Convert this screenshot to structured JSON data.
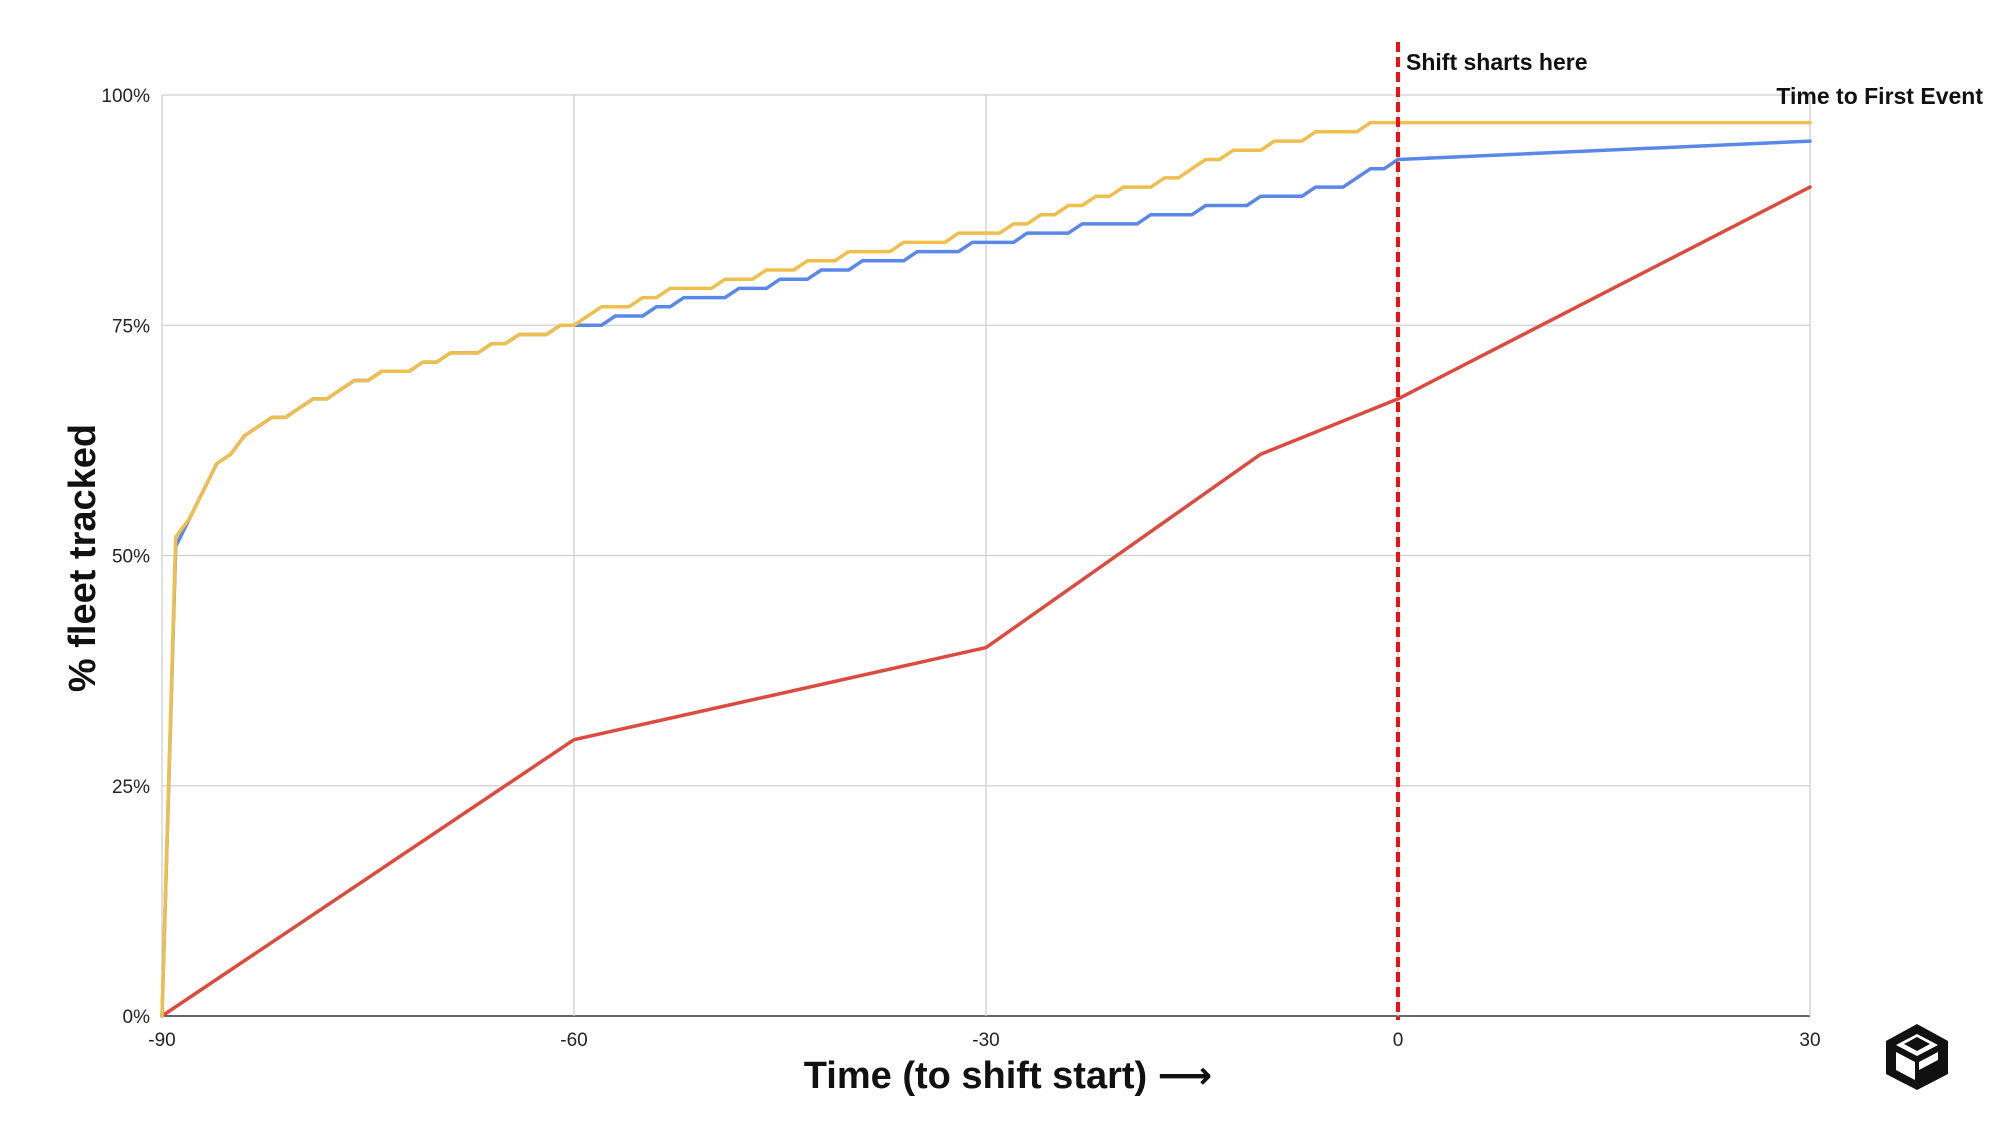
{
  "chart_data": {
    "type": "line",
    "xlabel": "Time (to shift start) ⟶",
    "ylabel": "% fleet tracked",
    "xlim": [
      -90,
      30
    ],
    "ylim": [
      0,
      1
    ],
    "x_ticks": [
      -90,
      -60,
      -30,
      0,
      30
    ],
    "x_tick_labels": [
      "-90",
      "-60",
      "-30",
      "0",
      "30"
    ],
    "y_ticks": [
      0,
      0.25,
      0.5,
      0.75,
      1
    ],
    "y_tick_labels": [
      "0%",
      "25%",
      "50%",
      "75%",
      "100%"
    ],
    "grid": true,
    "colors": {
      "red": "#db4c3f",
      "blue": "#5a88e8",
      "yellow": "#eebf4c",
      "marker": "#ee1111",
      "grid": "#d0d0d0"
    },
    "annotations": {
      "shift_line_x": 0,
      "shift_label": "Shift sharts here",
      "series_label": "Time to First Event"
    },
    "series": [
      {
        "color": "#db4c3f",
        "x": [
          -90,
          -60,
          -30,
          -10,
          0,
          30
        ],
        "y": [
          0,
          0.3,
          0.4,
          0.61,
          0.67,
          0.9
        ]
      },
      {
        "color": "#5a88e8",
        "x": [
          -90,
          -89,
          -88,
          -87,
          -86,
          -85,
          -84,
          -83,
          -82,
          -81,
          -80,
          -79,
          -78,
          -77,
          -76,
          -75,
          -74,
          -73,
          -72,
          -71,
          -70,
          -69,
          -68,
          -67,
          -66,
          -65,
          -64,
          -63,
          -62,
          -61,
          -60,
          -59,
          -58,
          -57,
          -56,
          -55,
          -54,
          -53,
          -52,
          -51,
          -50,
          -49,
          -48,
          -47,
          -46,
          -45,
          -44,
          -43,
          -42,
          -41,
          -40,
          -39,
          -38,
          -37,
          -36,
          -35,
          -34,
          -33,
          -32,
          -31,
          -30,
          -29,
          -28,
          -27,
          -26,
          -25,
          -24,
          -23,
          -22,
          -21,
          -20,
          -19,
          -18,
          -17,
          -16,
          -15,
          -14,
          -13,
          -12,
          -11,
          -10,
          -9,
          -8,
          -7,
          -6,
          -5,
          -4,
          -3,
          -2,
          -1,
          0,
          30
        ],
        "y": [
          0,
          0.51,
          0.54,
          0.57,
          0.6,
          0.61,
          0.63,
          0.64,
          0.65,
          0.65,
          0.66,
          0.67,
          0.67,
          0.68,
          0.69,
          0.69,
          0.7,
          0.7,
          0.7,
          0.71,
          0.71,
          0.72,
          0.72,
          0.72,
          0.73,
          0.73,
          0.74,
          0.74,
          0.74,
          0.75,
          0.75,
          0.75,
          0.75,
          0.76,
          0.76,
          0.76,
          0.77,
          0.77,
          0.78,
          0.78,
          0.78,
          0.78,
          0.79,
          0.79,
          0.79,
          0.8,
          0.8,
          0.8,
          0.81,
          0.81,
          0.81,
          0.82,
          0.82,
          0.82,
          0.82,
          0.83,
          0.83,
          0.83,
          0.83,
          0.84,
          0.84,
          0.84,
          0.84,
          0.85,
          0.85,
          0.85,
          0.85,
          0.86,
          0.86,
          0.86,
          0.86,
          0.86,
          0.87,
          0.87,
          0.87,
          0.87,
          0.88,
          0.88,
          0.88,
          0.88,
          0.89,
          0.89,
          0.89,
          0.89,
          0.9,
          0.9,
          0.9,
          0.91,
          0.92,
          0.92,
          0.93,
          0.95
        ]
      },
      {
        "color": "#eebf4c",
        "x": [
          -90,
          -89,
          -88,
          -87,
          -86,
          -85,
          -84,
          -83,
          -82,
          -81,
          -80,
          -79,
          -78,
          -77,
          -76,
          -75,
          -74,
          -73,
          -72,
          -71,
          -70,
          -69,
          -68,
          -67,
          -66,
          -65,
          -64,
          -63,
          -62,
          -61,
          -60,
          -59,
          -58,
          -57,
          -56,
          -55,
          -54,
          -53,
          -52,
          -51,
          -50,
          -49,
          -48,
          -47,
          -46,
          -45,
          -44,
          -43,
          -42,
          -41,
          -40,
          -39,
          -38,
          -37,
          -36,
          -35,
          -34,
          -33,
          -32,
          -31,
          -30,
          -29,
          -28,
          -27,
          -26,
          -25,
          -24,
          -23,
          -22,
          -21,
          -20,
          -19,
          -18,
          -17,
          -16,
          -15,
          -14,
          -13,
          -12,
          -11,
          -10,
          -9,
          -8,
          -7,
          -6,
          -5,
          -4,
          -3,
          -2,
          -1,
          0,
          30
        ],
        "y": [
          0,
          0.52,
          0.54,
          0.57,
          0.6,
          0.61,
          0.63,
          0.64,
          0.65,
          0.65,
          0.66,
          0.67,
          0.67,
          0.68,
          0.69,
          0.69,
          0.7,
          0.7,
          0.7,
          0.71,
          0.71,
          0.72,
          0.72,
          0.72,
          0.73,
          0.73,
          0.74,
          0.74,
          0.74,
          0.75,
          0.75,
          0.76,
          0.77,
          0.77,
          0.77,
          0.78,
          0.78,
          0.79,
          0.79,
          0.79,
          0.79,
          0.8,
          0.8,
          0.8,
          0.81,
          0.81,
          0.81,
          0.82,
          0.82,
          0.82,
          0.83,
          0.83,
          0.83,
          0.83,
          0.84,
          0.84,
          0.84,
          0.84,
          0.85,
          0.85,
          0.85,
          0.85,
          0.86,
          0.86,
          0.87,
          0.87,
          0.88,
          0.88,
          0.89,
          0.89,
          0.9,
          0.9,
          0.9,
          0.91,
          0.91,
          0.92,
          0.93,
          0.93,
          0.94,
          0.94,
          0.94,
          0.95,
          0.95,
          0.95,
          0.96,
          0.96,
          0.96,
          0.96,
          0.97,
          0.97,
          0.97,
          0.97
        ]
      }
    ]
  },
  "logo": {
    "icon": "cube-logo-icon"
  }
}
